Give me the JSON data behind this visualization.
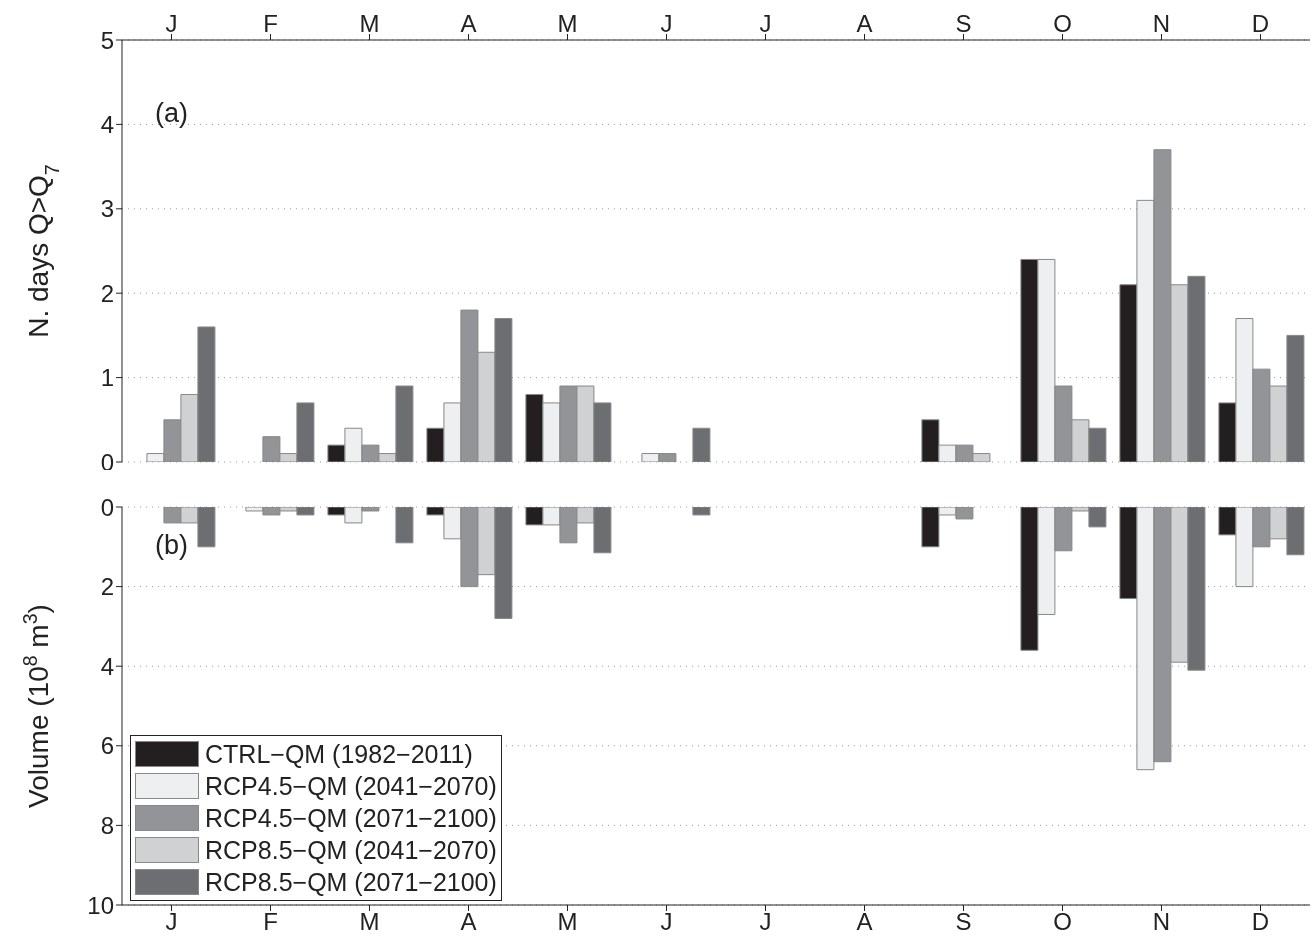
{
  "chart_data": [
    {
      "type": "bar",
      "annotations": [
        "(a)"
      ],
      "ylabel": "N. days Q>Q$_{7}$",
      "categories": [
        "J",
        "F",
        "M",
        "A",
        "M",
        "J",
        "J",
        "A",
        "S",
        "O",
        "N",
        "D"
      ],
      "ylim": [
        0,
        5
      ],
      "yticks": [
        0,
        1,
        2,
        3,
        4,
        5
      ],
      "grid": "y",
      "line_style": "dotted",
      "series": [
        {
          "color": "#231f20",
          "values": [
            0,
            0,
            0.2,
            0.4,
            0.8,
            0,
            0,
            0,
            0.5,
            2.4,
            2.1,
            0.7
          ]
        },
        {
          "color": "#eeeff1",
          "values": [
            0.1,
            0,
            0.4,
            0.7,
            0.7,
            0.1,
            0,
            0,
            0.2,
            2.4,
            3.1,
            1.7
          ]
        },
        {
          "color": "#939497",
          "values": [
            0.5,
            0.3,
            0.2,
            1.8,
            0.9,
            0.1,
            0,
            0,
            0.2,
            0.9,
            3.7,
            1.1
          ]
        },
        {
          "color": "#d0d1d3",
          "values": [
            0.8,
            0.1,
            0.1,
            1.3,
            0.9,
            0,
            0,
            0,
            0.1,
            0.5,
            2.1,
            0.9
          ]
        },
        {
          "color": "#6d6e71",
          "values": [
            1.6,
            0.7,
            0.9,
            1.7,
            0.7,
            0.4,
            0,
            0,
            0,
            0.4,
            2.2,
            1.5
          ]
        }
      ]
    },
    {
      "type": "bar",
      "annotations": [
        "(b)"
      ],
      "ylabel": "Volume (10$^{8}$ m$^{3}$)",
      "categories": [
        "J",
        "F",
        "M",
        "A",
        "M",
        "J",
        "J",
        "A",
        "S",
        "O",
        "N",
        "D"
      ],
      "ylim": [
        10,
        0
      ],
      "yticks": [
        0,
        2,
        4,
        6,
        8,
        10
      ],
      "grid": "y",
      "line_style": "dotted",
      "legend": "bottom left",
      "series": [
        {
          "name": "CTRL−QM (1982−2011)",
          "color": "#231f20",
          "values": [
            0,
            0,
            0.2,
            0.2,
            0.45,
            0,
            0,
            0,
            1,
            3.6,
            2.3,
            0.7
          ]
        },
        {
          "name": "RCP4.5−QM (2041−2070)",
          "color": "#eeeff1",
          "values": [
            0,
            0.1,
            0.4,
            0.8,
            0.45,
            0,
            0,
            0,
            0.2,
            2.7,
            6.6,
            2
          ]
        },
        {
          "name": "RCP4.5−QM (2071−2100)",
          "color": "#939497",
          "values": [
            0.4,
            0.2,
            0.1,
            2,
            0.9,
            0,
            0,
            0,
            0.3,
            1.1,
            6.4,
            1
          ]
        },
        {
          "name": "RCP8.5−QM (2041−2070)",
          "color": "#d0d1d3",
          "values": [
            0.4,
            0.1,
            0,
            1.7,
            0.4,
            0,
            0,
            0,
            0,
            0.1,
            3.9,
            0.8
          ]
        },
        {
          "name": "RCP8.5−QM (2071−2100)",
          "color": "#6d6e71",
          "values": [
            1,
            0.2,
            0.9,
            2.8,
            1.15,
            0.2,
            0,
            0,
            0,
            0.5,
            4.1,
            1.2
          ]
        }
      ]
    }
  ]
}
